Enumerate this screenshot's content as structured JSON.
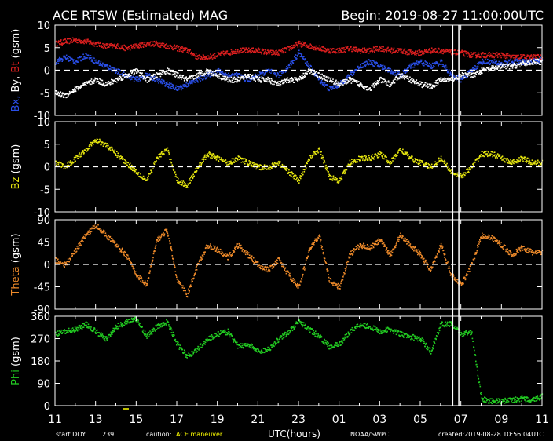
{
  "header": {
    "title": "ACE RTSW (Estimated) MAG",
    "begin": "Begin: 2019-08-27 11:00:00UTC"
  },
  "footer": {
    "start_doy_label": "start DOY:",
    "start_doy": "239",
    "caution_label": "caution:",
    "caution_text": "ACE maneuver",
    "xlabel": "UTC(hours)",
    "source": "NOAA/SWPC",
    "created": "created:2019-08-28 10:56:04UTC"
  },
  "colors": {
    "background": "#000000",
    "axes": "#ffffff",
    "bt": "#dd1f1f",
    "bx": "#2a4fe8",
    "by": "#ffffff",
    "bz": "#e6e60f",
    "theta": "#ee8a2a",
    "phi": "#22cc22",
    "caution": "#ffff00"
  },
  "chart_data": {
    "type": "scatter",
    "x_unit": "UTC hour (11 on 2019-08-27 to 11 on 2019-08-28)",
    "x_tick_labels": [
      "11",
      "13",
      "15",
      "17",
      "19",
      "21",
      "23",
      "01",
      "03",
      "05",
      "07",
      "09",
      "11"
    ],
    "maneuver_markers_utc": [
      "06:36",
      "06:54"
    ],
    "panels": [
      {
        "ylabel_parts": [
          {
            "text": "Bx,",
            "color": "#2a4fe8"
          },
          {
            "text": " By,",
            "color": "#ffffff"
          },
          {
            "text": " Bt",
            "color": "#dd1f1f"
          },
          {
            "text": " (gsm)",
            "color": "#ffffff"
          }
        ],
        "ylim": [
          -10,
          10
        ],
        "yticks": [
          10,
          5,
          0,
          -5,
          -10
        ],
        "zero_line": true,
        "series": [
          {
            "name": "Bt",
            "color": "#dd1f1f",
            "hours": [
              11,
              11.5,
              12,
              12.5,
              13,
              13.5,
              14,
              14.5,
              15,
              15.5,
              16,
              16.5,
              17,
              17.5,
              18,
              18.5,
              19,
              19.5,
              20,
              20.5,
              21,
              21.5,
              22,
              22.5,
              23,
              23.5,
              24,
              24.5,
              25,
              25.5,
              26,
              26.5,
              27,
              27.5,
              28,
              28.5,
              29,
              29.5,
              30,
              30.5,
              31,
              31.5,
              32,
              32.5,
              33,
              33.5,
              34,
              34.5,
              35
            ],
            "values": [
              6,
              6.5,
              6.8,
              6.5,
              6,
              5.5,
              5.5,
              5,
              5.5,
              6,
              6,
              5.5,
              5,
              4.5,
              3,
              3,
              3.5,
              4,
              4.5,
              4.5,
              4.5,
              4,
              4,
              5,
              6,
              5.5,
              5,
              4.5,
              4.5,
              5,
              4.5,
              4.5,
              5,
              4.5,
              4.5,
              4,
              4,
              4.5,
              4.5,
              4,
              4,
              3.5,
              3.5,
              3.5,
              3.5,
              3,
              3,
              3,
              3
            ]
          },
          {
            "name": "Bx",
            "color": "#2a4fe8",
            "hours": [
              11,
              11.5,
              12,
              12.5,
              13,
              13.5,
              14,
              14.5,
              15,
              15.5,
              16,
              16.5,
              17,
              17.5,
              18,
              18.5,
              19,
              19.5,
              20,
              20.5,
              21,
              21.5,
              22,
              22.5,
              23,
              23.5,
              24,
              24.5,
              25,
              25.5,
              26,
              26.5,
              27,
              27.5,
              28,
              28.5,
              29,
              29.5,
              30,
              30.5,
              31,
              31.5,
              32,
              32.5,
              33,
              33.5,
              34,
              34.5,
              35
            ],
            "values": [
              2,
              3,
              2,
              3.5,
              2,
              1,
              0,
              -1,
              -2,
              -1,
              -2,
              -3,
              -4,
              -3,
              -2,
              -1,
              0,
              -1,
              -1,
              -2,
              -1,
              0,
              -1,
              1,
              4,
              1,
              -2,
              -4,
              -3,
              -1,
              1,
              2,
              1,
              0,
              -1,
              1,
              2,
              1,
              2,
              -1,
              -2,
              0,
              2,
              2,
              1.5,
              2,
              2,
              2,
              2.5
            ]
          },
          {
            "name": "By",
            "color": "#ffffff",
            "hours": [
              11,
              11.5,
              12,
              12.5,
              13,
              13.5,
              14,
              14.5,
              15,
              15.5,
              16,
              16.5,
              17,
              17.5,
              18,
              18.5,
              19,
              19.5,
              20,
              20.5,
              21,
              21.5,
              22,
              22.5,
              23,
              23.5,
              24,
              24.5,
              25,
              25.5,
              26,
              26.5,
              27,
              27.5,
              28,
              28.5,
              29,
              29.5,
              30,
              30.5,
              31,
              31.5,
              32,
              32.5,
              33,
              33.5,
              34,
              34.5,
              35
            ],
            "values": [
              -5,
              -5.5,
              -4,
              -3,
              -2,
              -3,
              -2,
              -1,
              0,
              -2,
              -1,
              0,
              -1,
              -2,
              -1,
              0,
              -1,
              -2,
              -2,
              -1,
              -2,
              -2,
              -3,
              -2,
              -2,
              0,
              -1,
              -2,
              -3,
              -2,
              -3,
              -4,
              -2,
              -3,
              -1,
              -2,
              -3,
              -3.5,
              -2,
              -2,
              -1,
              -1,
              0,
              0.5,
              1,
              1,
              1.5,
              2,
              2
            ]
          }
        ]
      },
      {
        "ylabel_parts": [
          {
            "text": "Bz",
            "color": "#e6e60f"
          },
          {
            "text": " (gsm)",
            "color": "#ffffff"
          }
        ],
        "ylim": [
          -10,
          10
        ],
        "yticks": [
          10,
          5,
          0,
          -5,
          -10
        ],
        "zero_line": true,
        "series": [
          {
            "name": "Bz",
            "color": "#e6e60f",
            "hours": [
              11,
              11.5,
              12,
              12.5,
              13,
              13.5,
              14,
              14.5,
              15,
              15.5,
              16,
              16.5,
              17,
              17.5,
              18,
              18.5,
              19,
              19.5,
              20,
              20.5,
              21,
              21.5,
              22,
              22.5,
              23,
              23.5,
              24,
              24.5,
              25,
              25.5,
              26,
              26.5,
              27,
              27.5,
              28,
              28.5,
              29,
              29.5,
              30,
              30.5,
              31,
              31.5,
              32,
              32.5,
              33,
              33.5,
              34,
              34.5,
              35
            ],
            "values": [
              1,
              0,
              2,
              4,
              6,
              5,
              3,
              1,
              -1,
              -3,
              2,
              4,
              -3,
              -4,
              0,
              3,
              2,
              1,
              2,
              1,
              0,
              0,
              1,
              -1,
              -3,
              2,
              4,
              -2,
              -3,
              1,
              2,
              2,
              3,
              1,
              4,
              2,
              1,
              0,
              2,
              -1,
              -2,
              0,
              3,
              3,
              2,
              1,
              2,
              1,
              1
            ]
          }
        ]
      },
      {
        "ylabel_parts": [
          {
            "text": "Theta",
            "color": "#ee8a2a"
          },
          {
            "text": " (gsm)",
            "color": "#ffffff"
          }
        ],
        "ylim": [
          -90,
          90
        ],
        "yticks": [
          90,
          45,
          0,
          -45,
          -90
        ],
        "zero_line": true,
        "series": [
          {
            "name": "Theta",
            "color": "#ee8a2a",
            "hours": [
              11,
              11.5,
              12,
              12.5,
              13,
              13.5,
              14,
              14.5,
              15,
              15.5,
              16,
              16.5,
              17,
              17.5,
              18,
              18.5,
              19,
              19.5,
              20,
              20.5,
              21,
              21.5,
              22,
              22.5,
              23,
              23.5,
              24,
              24.5,
              25,
              25.5,
              26,
              26.5,
              27,
              27.5,
              28,
              28.5,
              29,
              29.5,
              30,
              30.5,
              31,
              31.5,
              32,
              32.5,
              33,
              33.5,
              34,
              34.5,
              35
            ],
            "values": [
              10,
              0,
              30,
              60,
              80,
              60,
              40,
              20,
              -20,
              -40,
              50,
              70,
              -30,
              -60,
              0,
              40,
              30,
              15,
              40,
              20,
              0,
              -10,
              10,
              -20,
              -45,
              30,
              60,
              -30,
              -45,
              20,
              40,
              35,
              50,
              20,
              60,
              40,
              20,
              -10,
              40,
              -20,
              -40,
              0,
              60,
              55,
              40,
              20,
              35,
              25,
              25
            ]
          }
        ]
      },
      {
        "ylabel_parts": [
          {
            "text": "Phi",
            "color": "#22cc22"
          },
          {
            "text": " (gsm)",
            "color": "#ffffff"
          }
        ],
        "ylim": [
          0,
          360
        ],
        "yticks": [
          360,
          270,
          180,
          90,
          0
        ],
        "zero_line": false,
        "series": [
          {
            "name": "Phi",
            "color": "#22cc22",
            "hours": [
              11,
              11.5,
              12,
              12.5,
              13,
              13.5,
              14,
              14.5,
              15,
              15.5,
              16,
              16.5,
              17,
              17.5,
              18,
              18.5,
              19,
              19.5,
              20,
              20.5,
              21,
              21.5,
              22,
              22.5,
              23,
              23.5,
              24,
              24.5,
              25,
              25.5,
              26,
              26.5,
              27,
              27.5,
              28,
              28.5,
              29,
              29.5,
              30,
              30.5,
              31,
              31.5,
              32,
              32.5,
              33,
              33.5,
              34,
              34.5,
              35
            ],
            "values": [
              290,
              300,
              310,
              330,
              300,
              270,
              320,
              340,
              350,
              280,
              320,
              340,
              250,
              200,
              230,
              270,
              290,
              300,
              240,
              250,
              220,
              230,
              270,
              300,
              340,
              310,
              280,
              240,
              250,
              300,
              330,
              320,
              300,
              310,
              290,
              280,
              270,
              220,
              330,
              330,
              290,
              300,
              30,
              20,
              20,
              25,
              30,
              25,
              40
            ]
          }
        ]
      }
    ]
  }
}
